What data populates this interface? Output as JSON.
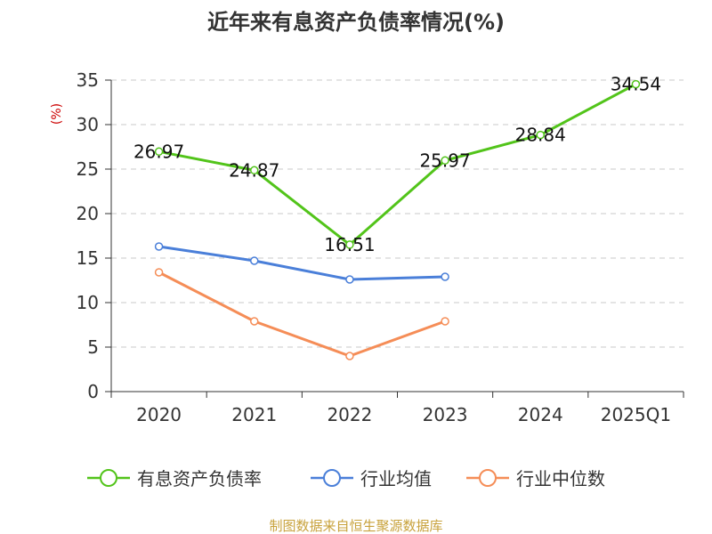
{
  "chart_data": {
    "type": "line",
    "title": "近年来有息资产负债率情况(%)",
    "ylabel": "(%)",
    "xlabel": "",
    "categories": [
      "2020",
      "2021",
      "2022",
      "2023",
      "2024",
      "2025Q1"
    ],
    "ylim": [
      0,
      35
    ],
    "yticks": [
      0,
      5,
      10,
      15,
      20,
      25,
      30,
      35
    ],
    "grid": true,
    "legend_position": "bottom",
    "series": [
      {
        "name": "有息资产负债率",
        "color": "#52c41a",
        "values": [
          26.97,
          24.87,
          16.51,
          25.97,
          28.84,
          34.54
        ],
        "data_labels": [
          "26.97",
          "24.87",
          "16.51",
          "25.97",
          "28.84",
          "34.54"
        ]
      },
      {
        "name": "行业均值",
        "color": "#4a7fd9",
        "values": [
          16.3,
          14.7,
          12.6,
          12.9,
          null,
          null
        ]
      },
      {
        "name": "行业中位数",
        "color": "#f58d57",
        "values": [
          13.4,
          7.9,
          4.0,
          7.9,
          null,
          null
        ]
      }
    ]
  },
  "colors": {
    "ylabel": "#cc0000",
    "source": "#c8a23c",
    "grid": "#c8c8c8",
    "axis": "#333333"
  },
  "source_text": "制图数据来自恒生聚源数据库"
}
